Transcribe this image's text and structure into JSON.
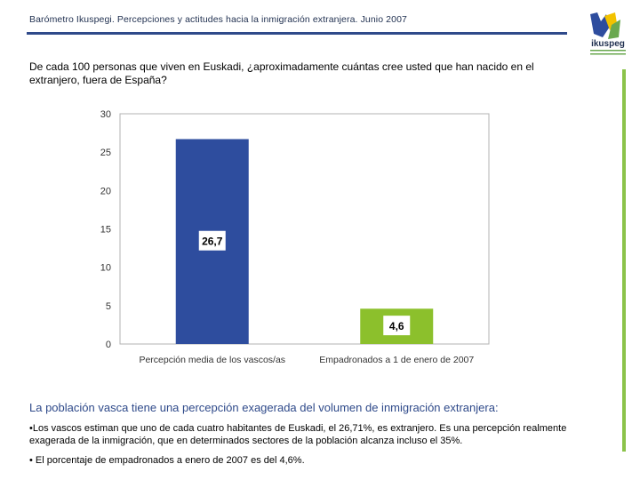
{
  "header": {
    "title": "Barómetro Ikuspegi. Percepciones y actitudes hacia la inmigración extranjera. Junio 2007",
    "logo_text": "ikuspeg"
  },
  "question": "De cada 100 personas que viven en Euskadi, ¿aproximadamente cuántas cree usted que han nacido en el extranjero, fuera de España?",
  "conclusion": "La población vasca tiene una percepción exagerada del volumen de inmigración extranjera:",
  "bullets": [
    "•Los vascos estiman que uno de cada cuatro habitantes de Euskadi, el 26,71%, es extranjero. Es una percepción realmente exagerada de la inmigración, que en determinados sectores de la población alcanza incluso el 35%.",
    "• El porcentaje de empadronados a enero de 2007 es del 4,6%."
  ],
  "colors": {
    "bar1": "#2e4d9e",
    "bar2": "#8cc02c",
    "accent": "#2f4a8a",
    "green": "#8bc34a"
  },
  "chart_data": {
    "type": "bar",
    "title": "",
    "xlabel": "",
    "ylabel": "",
    "ylim": [
      0,
      30
    ],
    "yticks": [
      0,
      5,
      10,
      15,
      20,
      25,
      30
    ],
    "categories": [
      "Percepción media de los vascos/as",
      "Empadronados a 1 de enero de 2007"
    ],
    "values": [
      26.7,
      4.6
    ],
    "data_labels": [
      "26,7",
      "4,6"
    ],
    "grid": false
  }
}
